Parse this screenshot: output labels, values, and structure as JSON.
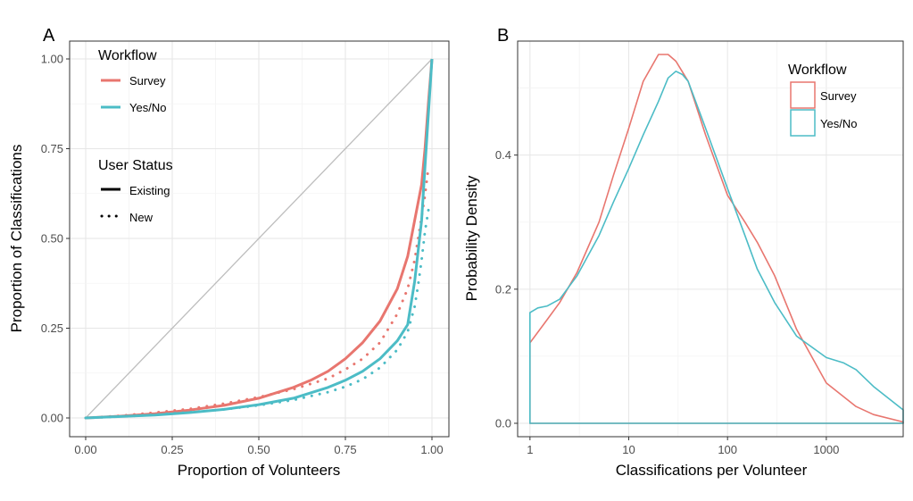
{
  "chart_data": [
    {
      "panel": "A",
      "type": "line",
      "xlabel": "Proportion of Volunteers",
      "ylabel": "Proportion of Classifications",
      "xlim": [
        0,
        1
      ],
      "ylim": [
        0,
        1
      ],
      "xticks": [
        "0.00",
        "0.25",
        "0.50",
        "0.75",
        "1.00"
      ],
      "yticks": [
        "0.00",
        "0.25",
        "0.50",
        "0.75",
        "1.00"
      ],
      "grid": true,
      "legend_position": "top-left",
      "legends": [
        {
          "title": "Workflow",
          "entries": [
            "Survey",
            "Yes/No"
          ]
        },
        {
          "title": "User Status",
          "entries": [
            "Existing",
            "New"
          ]
        }
      ],
      "reference_line": {
        "x": [
          0,
          1
        ],
        "y": [
          0,
          1
        ],
        "color": "#bdbdbd"
      },
      "series": [
        {
          "workflow": "Survey",
          "status": "Existing",
          "color": "#e8766f",
          "x": [
            0,
            0.1,
            0.2,
            0.3,
            0.4,
            0.5,
            0.6,
            0.65,
            0.7,
            0.75,
            0.8,
            0.85,
            0.9,
            0.93,
            0.95,
            0.97,
            0.98,
            0.99,
            1.0
          ],
          "y": [
            0,
            0.005,
            0.012,
            0.022,
            0.035,
            0.055,
            0.085,
            0.105,
            0.13,
            0.165,
            0.21,
            0.27,
            0.36,
            0.45,
            0.55,
            0.65,
            0.75,
            0.88,
            1.0
          ]
        },
        {
          "workflow": "Survey",
          "status": "New",
          "color": "#e8766f",
          "x": [
            0,
            0.1,
            0.2,
            0.3,
            0.4,
            0.5,
            0.6,
            0.65,
            0.7,
            0.75,
            0.8,
            0.85,
            0.9,
            0.93,
            0.95,
            0.96,
            0.97,
            0.98,
            0.99
          ],
          "y": [
            0,
            0.006,
            0.015,
            0.025,
            0.04,
            0.058,
            0.08,
            0.095,
            0.11,
            0.135,
            0.165,
            0.21,
            0.29,
            0.36,
            0.44,
            0.5,
            0.56,
            0.62,
            0.7
          ]
        },
        {
          "workflow": "Yes/No",
          "status": "Existing",
          "color": "#4cbcc6",
          "x": [
            0,
            0.1,
            0.2,
            0.3,
            0.4,
            0.5,
            0.6,
            0.7,
            0.75,
            0.8,
            0.85,
            0.9,
            0.93,
            0.95,
            0.97,
            0.98,
            0.99,
            1.0
          ],
          "y": [
            0,
            0.004,
            0.008,
            0.015,
            0.024,
            0.037,
            0.055,
            0.085,
            0.105,
            0.13,
            0.165,
            0.215,
            0.26,
            0.38,
            0.55,
            0.7,
            0.85,
            1.0
          ]
        },
        {
          "workflow": "Yes/No",
          "status": "New",
          "color": "#4cbcc6",
          "x": [
            0,
            0.1,
            0.2,
            0.3,
            0.4,
            0.5,
            0.6,
            0.7,
            0.75,
            0.8,
            0.85,
            0.9,
            0.93,
            0.95,
            0.96,
            0.97,
            0.98,
            0.99
          ],
          "y": [
            0,
            0.004,
            0.009,
            0.016,
            0.024,
            0.035,
            0.05,
            0.072,
            0.087,
            0.108,
            0.14,
            0.19,
            0.24,
            0.31,
            0.37,
            0.44,
            0.52,
            0.58
          ]
        }
      ]
    },
    {
      "panel": "B",
      "type": "area",
      "xlabel": "Classifications per Volunteer",
      "ylabel": "Probability Density",
      "xscale": "log10",
      "xlim": [
        0.75,
        6000
      ],
      "ylim": [
        -0.02,
        0.57
      ],
      "xticks": [
        "1",
        "10",
        "100",
        "1000"
      ],
      "yticks": [
        "0.0",
        "0.2",
        "0.4"
      ],
      "grid": true,
      "legend_position": "top-right",
      "legends": [
        {
          "title": "Workflow",
          "entries": [
            "Survey",
            "Yes/No"
          ]
        }
      ],
      "series": [
        {
          "name": "Survey",
          "color": "#e8766f",
          "x": [
            1,
            1.5,
            2,
            3,
            5,
            7,
            10,
            14,
            20,
            25,
            30,
            40,
            60,
            100,
            150,
            200,
            300,
            500,
            1000,
            2000,
            3000,
            6000
          ],
          "y": [
            0.12,
            0.155,
            0.18,
            0.225,
            0.3,
            0.37,
            0.44,
            0.51,
            0.55,
            0.55,
            0.54,
            0.51,
            0.43,
            0.34,
            0.3,
            0.27,
            0.22,
            0.14,
            0.06,
            0.025,
            0.013,
            0.002
          ]
        },
        {
          "name": "Yes/No",
          "color": "#4cbcc6",
          "x": [
            1,
            1.2,
            1.5,
            2,
            3,
            5,
            7,
            10,
            14,
            20,
            25,
            30,
            35,
            40,
            60,
            100,
            150,
            200,
            300,
            500,
            1000,
            1500,
            2000,
            3000,
            6000
          ],
          "y": [
            0.165,
            0.172,
            0.175,
            0.185,
            0.22,
            0.28,
            0.33,
            0.38,
            0.43,
            0.48,
            0.515,
            0.525,
            0.52,
            0.51,
            0.44,
            0.35,
            0.28,
            0.23,
            0.18,
            0.13,
            0.098,
            0.09,
            0.08,
            0.055,
            0.02
          ]
        }
      ]
    }
  ]
}
